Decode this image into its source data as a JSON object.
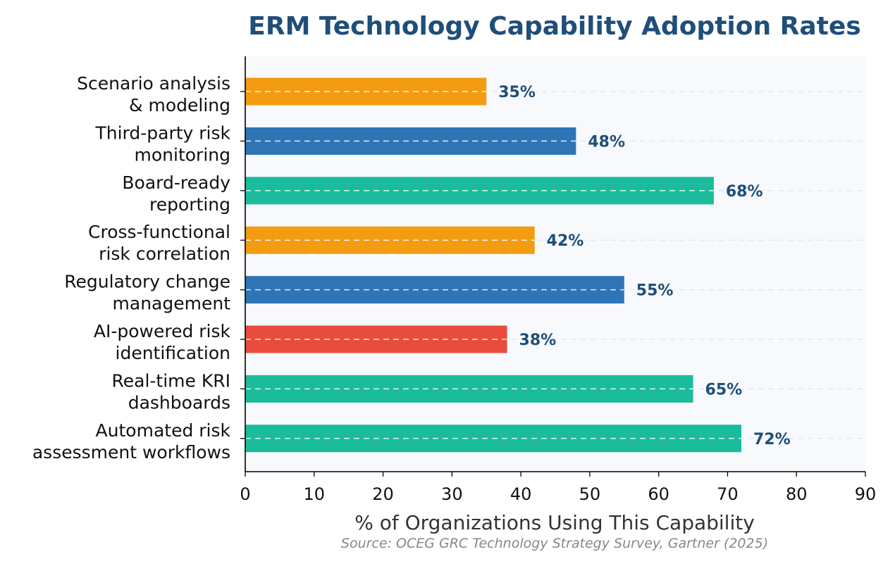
{
  "chart_data": {
    "type": "bar",
    "orientation": "horizontal",
    "title": "ERM Technology Capability Adoption Rates",
    "xlabel": "% of Organizations Using This Capability",
    "ylabel": "",
    "source": "Source: OCEG GRC Technology Strategy Survey, Gartner (2025)",
    "xlim": [
      0,
      90
    ],
    "xticks": [
      0,
      10,
      20,
      30,
      40,
      50,
      60,
      70,
      80,
      90
    ],
    "grid": "dashed horizontal lines through bars",
    "legend": "none",
    "categories": [
      [
        "Scenario analysis",
        "& modeling"
      ],
      [
        "Third-party risk",
        "monitoring"
      ],
      [
        "Board-ready",
        "reporting"
      ],
      [
        "Cross-functional",
        "risk correlation"
      ],
      [
        "Regulatory change",
        "management"
      ],
      [
        "AI-powered risk",
        "identification"
      ],
      [
        "Real-time KRI",
        "dashboards"
      ],
      [
        "Automated risk",
        "assessment workflows"
      ]
    ],
    "values": [
      35,
      48,
      68,
      42,
      55,
      38,
      65,
      72
    ],
    "value_labels": [
      "35%",
      "48%",
      "68%",
      "42%",
      "55%",
      "38%",
      "65%",
      "72%"
    ],
    "bar_colors": [
      "#f39c12",
      "#2e75b6",
      "#1abc9c",
      "#f39c12",
      "#2e75b6",
      "#e74c3c",
      "#1abc9c",
      "#1abc9c"
    ],
    "colors": {
      "title": "#1f4e79",
      "value_label": "#1f4e79",
      "plot_background": "#f7f9fc",
      "axis": "#000000",
      "source": "#888888"
    }
  }
}
